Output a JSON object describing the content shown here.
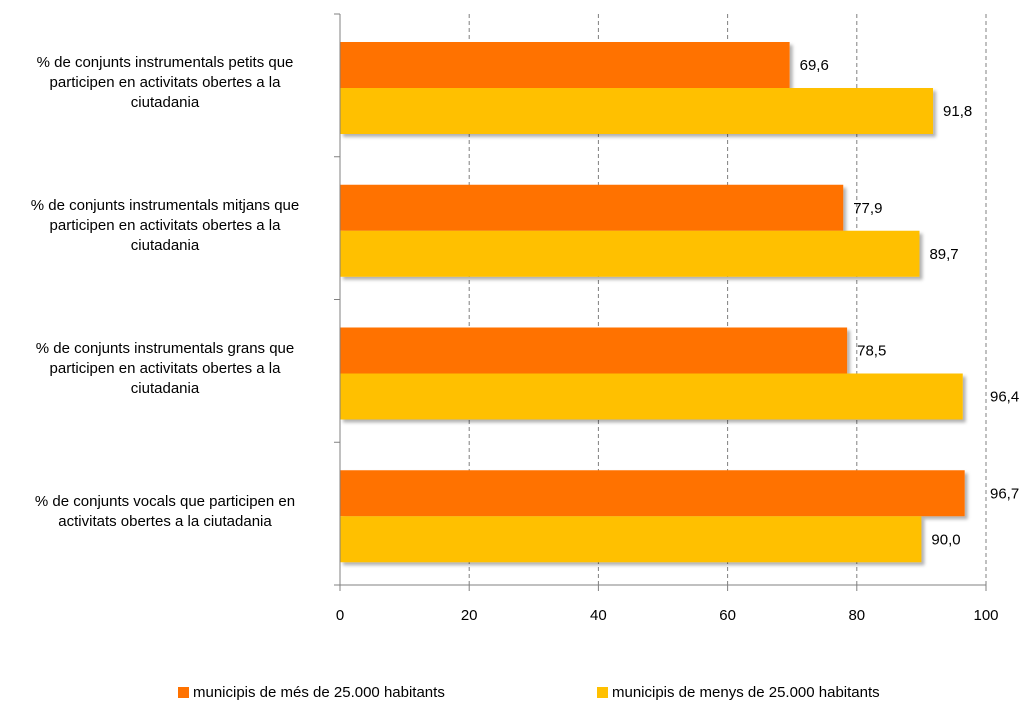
{
  "chart_data": {
    "type": "bar",
    "orientation": "horizontal",
    "categories": [
      "% de conjunts instrumentals petits que participen en activitats obertes a la ciutadania",
      "% de conjunts instrumentals mitjans que participen en activitats obertes a la ciutadania",
      "% de conjunts instrumentals grans que participen en activitats obertes a la ciutadania",
      "% de conjunts vocals que participen en activitats obertes a la ciutadania"
    ],
    "category_lines": [
      [
        "% de conjunts instrumentals petits que",
        "participen en activitats obertes a la",
        "ciutadania"
      ],
      [
        "% de conjunts instrumentals mitjans que",
        "participen en activitats obertes a la",
        "ciutadania"
      ],
      [
        "% de conjunts instrumentals grans que",
        "participen en activitats obertes a la",
        "ciutadania"
      ],
      [
        "% de conjunts vocals que participen en",
        "activitats obertes a la ciutadania"
      ]
    ],
    "series": [
      {
        "name": "municipis de més de 25.000 habitants",
        "color": "#ff7200",
        "values": [
          69.6,
          77.9,
          78.5,
          96.7
        ],
        "labels": [
          "69,6",
          "77,9",
          "78,5",
          "96,7"
        ]
      },
      {
        "name": "municipis de menys de 25.000 habitants",
        "color": "#ffc000",
        "values": [
          91.8,
          89.7,
          96.4,
          90.0
        ],
        "labels": [
          "91,8",
          "89,7",
          "96,4",
          "90,0"
        ]
      }
    ],
    "xlim": [
      0,
      100
    ],
    "x_ticks": [
      0,
      20,
      40,
      60,
      80,
      100
    ],
    "grid": "vertical dashed",
    "legend_position": "bottom"
  }
}
